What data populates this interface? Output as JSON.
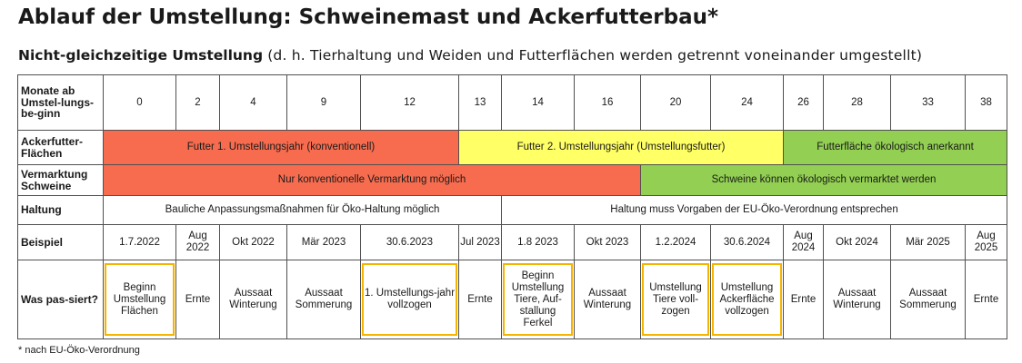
{
  "title": "Ablauf der Umstellung: Schweinemast und Ackerfutterbau*",
  "subtitle_bold": "Nicht-gleichzeitige Umstellung",
  "subtitle_rest": " (d. h. Tierhaltung und Weiden und Futterflächen werden getrennt voneinander umgestellt)",
  "footnote": "* nach EU-Öko-Verordnung",
  "colors": {
    "red": "#f76c4f",
    "yellow": "#ffff66",
    "green": "#92cf52",
    "highlight": "#f5b400"
  },
  "table": {
    "months_header": "Monate ab Umstel-lungs-be-ginn",
    "months": [
      "0",
      "2",
      "4",
      "9",
      "12",
      "13",
      "14",
      "16",
      "20",
      "24",
      "26",
      "28",
      "33",
      "38"
    ],
    "futter_header": "Ackerfutter-Flächen",
    "futter": [
      "Futter 1. Umstellungsjahr (konventionell)",
      "Futter 2. Umstellungsjahr (Umstellungsfutter)",
      "Futterfläche ökologisch anerkannt"
    ],
    "vermarktung_header": "Vermarktung Schweine",
    "vermarktung": [
      "Nur konventionelle Vermarktung möglich",
      "Schweine können ökologisch vermarktet werden"
    ],
    "haltung_header": "Haltung",
    "haltung": [
      "Bauliche Anpassungsmaßnahmen für Öko-Haltung möglich",
      "Haltung muss Vorgaben der EU-Öko-Verordnung entsprechen"
    ],
    "beispiel_header": "Beispiel",
    "beispiel": [
      "1.7.2022",
      "Aug 2022",
      "Okt 2022",
      "Mär 2023",
      "30.6.2023",
      "Jul 2023",
      "1.8 2023",
      "Okt 2023",
      "1.2.2024",
      "30.6.2024",
      "Aug 2024",
      "Okt 2024",
      "Mär 2025",
      "Aug 2025"
    ],
    "was_header": "Was pas-siert?",
    "was": [
      "Beginn Umstellung Flächen",
      "Ernte",
      "Aussaat Winterung",
      "Aussaat Sommerung",
      "1. Umstellungs-jahr vollzogen",
      "Ernte",
      "Beginn Umstellung Tiere, Auf-stallung Ferkel",
      "Aussaat Winterung",
      "Umstellung Tiere voll-zogen",
      "Umstellung Ackerfläche vollzogen",
      "Ernte",
      "Aussaat Winterung",
      "Aussaat Sommerung",
      "Ernte"
    ],
    "highlighted": [
      true,
      false,
      false,
      false,
      true,
      false,
      true,
      false,
      true,
      true,
      false,
      false,
      false,
      false
    ]
  }
}
